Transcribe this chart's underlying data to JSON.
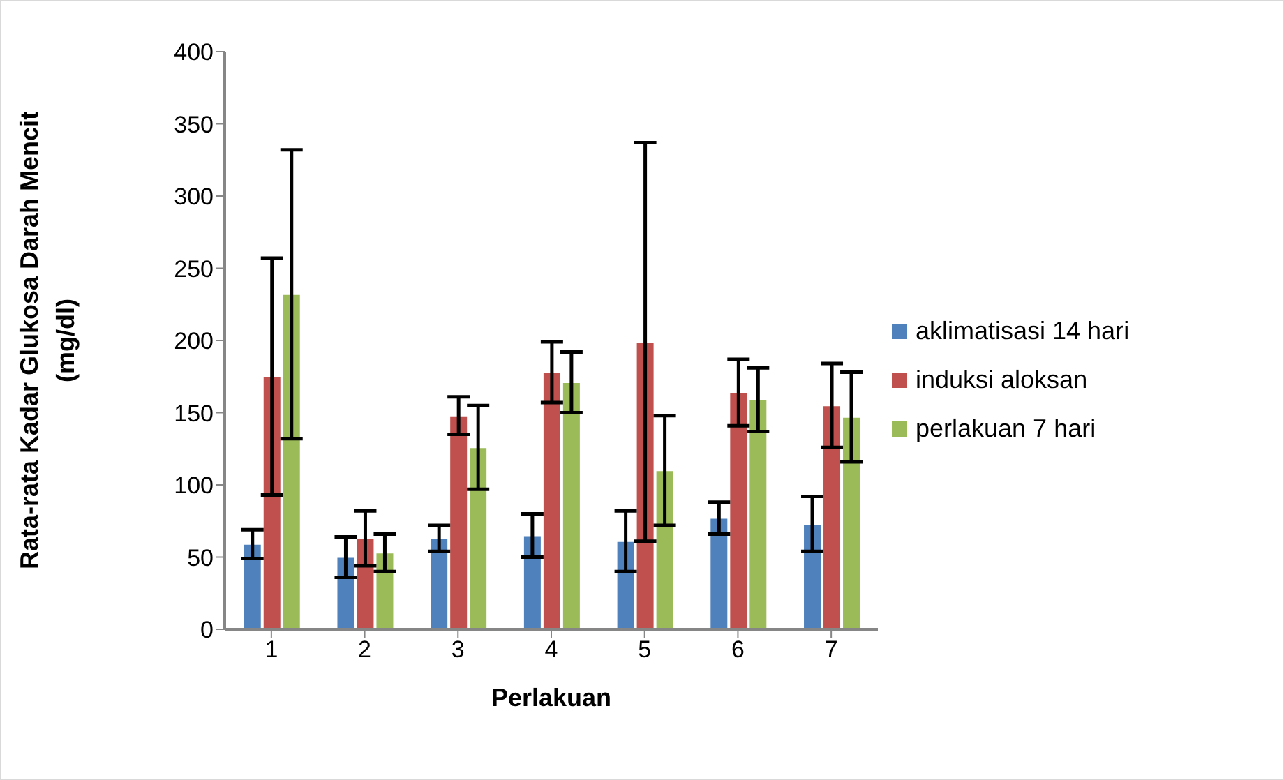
{
  "chart_data": {
    "type": "bar",
    "xlabel": "Perlakuan",
    "ylabel": "Rata-rata Kadar Glukosa Darah Mencit (mg/dl)",
    "categories": [
      "1",
      "2",
      "3",
      "4",
      "5",
      "6",
      "7"
    ],
    "series": [
      {
        "name": "aklimatisasi 14 hari",
        "color": "#4f81bd",
        "values": [
          59,
          50,
          63,
          65,
          61,
          77,
          73
        ],
        "errors": [
          10,
          14,
          9,
          15,
          21,
          11,
          19
        ]
      },
      {
        "name": "induksi aloksan",
        "color": "#c0504d",
        "values": [
          175,
          63,
          148,
          178,
          199,
          164,
          155
        ],
        "errors": [
          82,
          19,
          13,
          21,
          138,
          23,
          29
        ]
      },
      {
        "name": "perlakuan 7 hari",
        "color": "#9bbb59",
        "values": [
          232,
          53,
          126,
          171,
          110,
          159,
          147
        ],
        "errors": [
          100,
          13,
          29,
          21,
          38,
          22,
          31
        ]
      }
    ],
    "ylim": [
      0,
      400
    ],
    "yticks": [
      0,
      50,
      100,
      150,
      200,
      250,
      300,
      350,
      400
    ],
    "grid": false,
    "legend": "right"
  }
}
